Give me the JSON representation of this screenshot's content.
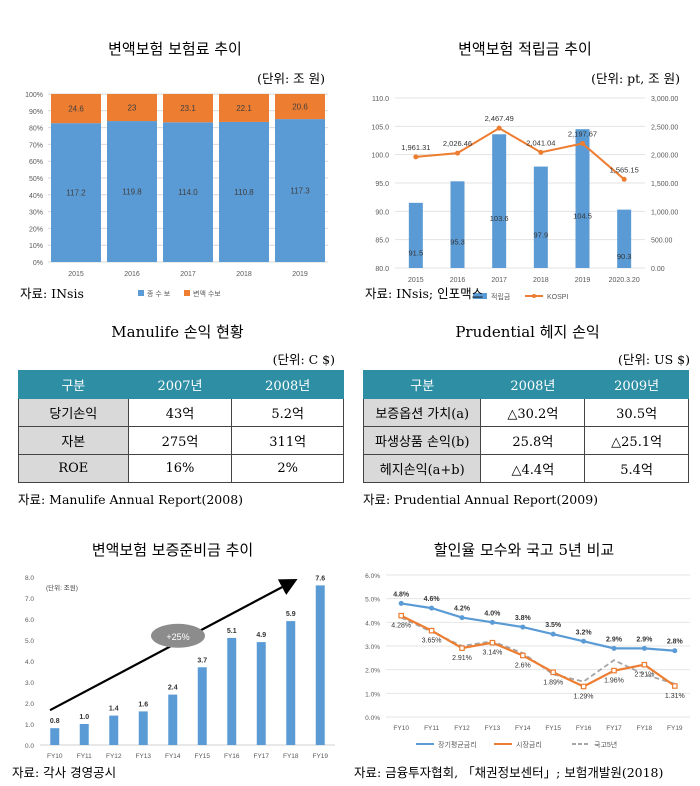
{
  "chart_data": [
    {
      "type": "bar",
      "stacked": true,
      "title": "변액보험 보험료 추이",
      "unit": "(단위: 조 원)",
      "categories": [
        "2015",
        "2016",
        "2017",
        "2018",
        "2019"
      ],
      "series": [
        {
          "name": "종 수 보",
          "values": [
            117.2,
            119.8,
            114.0,
            110.8,
            117.3
          ],
          "labels": [
            "117.2",
            "119.8",
            "114.0",
            "110.8",
            "117.3"
          ],
          "color": "#5b9bd5"
        },
        {
          "name": "변액 수보",
          "values": [
            24.6,
            23,
            23.1,
            22.1,
            20.6
          ],
          "labels": [
            "24.6",
            "23",
            "23.1",
            "22.1",
            "20.6"
          ],
          "color": "#ed7d31"
        }
      ],
      "yticks": [
        "0%",
        "10%",
        "20%",
        "30%",
        "40%",
        "50%",
        "60%",
        "70%",
        "80%",
        "90%",
        "100%"
      ],
      "source": "자료: INsis"
    },
    {
      "type": "bar+line",
      "title": "변액보험 적립금 추이",
      "unit": "(단위: pt, 조 원)",
      "categories": [
        "2015",
        "2016",
        "2017",
        "2018",
        "2019",
        "2020.3.20"
      ],
      "bar_series": {
        "name": "적립금",
        "values": [
          91.5,
          95.3,
          103.6,
          97.9,
          104.5,
          90.3
        ],
        "labels": [
          "91.5",
          "95.3",
          "103.6",
          "97.9",
          "104.5",
          "90.3"
        ],
        "color": "#5b9bd5"
      },
      "line_series": {
        "name": "KOSPI",
        "values": [
          1961.31,
          2026.46,
          2467.49,
          2041.04,
          2197.67,
          1565.15
        ],
        "labels": [
          "1,961.31",
          "2,026.46",
          "2,467.49",
          "2,041.04",
          "2,197.67",
          "1,565.15"
        ],
        "color": "#ed7d31"
      },
      "ylim_left": [
        80,
        110
      ],
      "left_ticks": [
        "80.0",
        "85.0",
        "90.0",
        "95.0",
        "100.0",
        "105.0",
        "110.0"
      ],
      "ylim_right": [
        0,
        3000
      ],
      "right_ticks": [
        "0.00",
        "500.00",
        "1,000.00",
        "1,500.00",
        "2,000.00",
        "2,500.00",
        "3,000.00"
      ],
      "source": "자료: INsis; 인포맥스"
    },
    {
      "type": "table",
      "title": "Manulife 손익 현황",
      "unit": "(단위: C $)",
      "header": [
        "구분",
        "2007년",
        "2008년"
      ],
      "rows": [
        [
          "당기손익",
          "43억",
          "5.2억"
        ],
        [
          "자본",
          "275억",
          "311억"
        ],
        [
          "ROE",
          "16%",
          "2%"
        ]
      ],
      "source": "자료: Manulife Annual Report(2008)"
    },
    {
      "type": "table",
      "title": "Prudential 헤지 손익",
      "unit": "(단위: US $)",
      "header": [
        "구분",
        "2008년",
        "2009년"
      ],
      "rows": [
        [
          "보증옵션 가치(a)",
          "△30.2억",
          "30.5억"
        ],
        [
          "파생상품 손익(b)",
          "25.8억",
          "△25.1억"
        ],
        [
          "헤지손익(a+b)",
          "△4.4억",
          "5.4억"
        ]
      ],
      "source": "자료: Prudential Annual Report(2009)"
    },
    {
      "type": "bar",
      "title": "변액보험 보증준비금 추이",
      "unit": "(단위: 조원)",
      "categories": [
        "FY10",
        "FY11",
        "FY12",
        "FY13",
        "FY14",
        "FY15",
        "FY16",
        "FY17",
        "FY18",
        "FY19"
      ],
      "values": [
        0.8,
        1.0,
        1.4,
        1.6,
        2.4,
        3.7,
        5.1,
        4.9,
        5.9,
        7.6
      ],
      "labels": [
        "0.8",
        "1.0",
        "1.4",
        "1.6",
        "2.4",
        "3.7",
        "5.1",
        "4.9",
        "5.9",
        "7.6"
      ],
      "ylim": [
        0,
        8
      ],
      "yticks": [
        "0.0",
        "1.0",
        "2.0",
        "3.0",
        "4.0",
        "5.0",
        "6.0",
        "7.0",
        "8.0"
      ],
      "annotation": "+25%",
      "color": "#5b9bd5",
      "source": "자료: 각사 경영공시"
    },
    {
      "type": "line",
      "title": "할인율 모수와 국고 5년 비교",
      "categories": [
        "FY10",
        "FY11",
        "FY12",
        "FY13",
        "FY14",
        "FY15",
        "FY16",
        "FY17",
        "FY18",
        "FY19"
      ],
      "series": [
        {
          "name": "장기평균금리",
          "values": [
            4.8,
            4.6,
            4.2,
            4.0,
            3.8,
            3.5,
            3.2,
            2.9,
            2.9,
            2.8
          ],
          "labels": [
            "4.8%",
            "4.6%",
            "4.2%",
            "4.0%",
            "3.8%",
            "3.5%",
            "3.2%",
            "2.9%",
            "2.9%",
            "2.8%"
          ],
          "color": "#5b9bd5"
        },
        {
          "name": "시장금리",
          "values": [
            4.28,
            3.65,
            2.91,
            3.14,
            2.6,
            1.89,
            1.29,
            1.96,
            2.21,
            1.31
          ],
          "labels": [
            "4.28%",
            "3.65%",
            "2.91%",
            "3.14%",
            "2.6%",
            "1.89%",
            "1.29%",
            "1.96%",
            "2.21%",
            "1.31%"
          ],
          "color": "#ed7d31"
        },
        {
          "name": "국고5년",
          "values": [
            4.2,
            3.6,
            3.0,
            3.2,
            2.7,
            1.8,
            1.5,
            2.4,
            1.8,
            1.4
          ],
          "color": "#a5a5a5"
        }
      ],
      "ylim": [
        0,
        6
      ],
      "yticks": [
        "0.0%",
        "1.0%",
        "2.0%",
        "3.0%",
        "4.0%",
        "5.0%",
        "6.0%"
      ],
      "source": "자료: 금융투자협회, 「채권정보센터」; 보험개발원(2018)"
    }
  ]
}
